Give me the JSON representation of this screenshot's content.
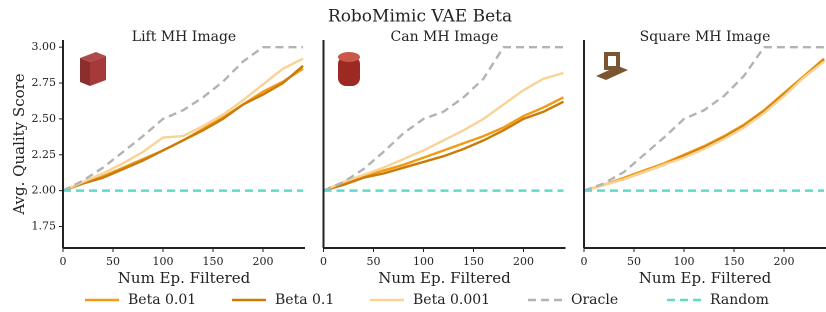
{
  "title": "RoboMimic VAE Beta",
  "chart_data": [
    {
      "type": "line",
      "title": "Lift MH Image",
      "xlabel": "Num Ep. Filtered",
      "ylabel": "Avg. Quality Score",
      "x": [
        0,
        20,
        40,
        60,
        80,
        100,
        120,
        140,
        160,
        180,
        200,
        220,
        240
      ],
      "xlim": [
        0,
        242
      ],
      "xticks": [
        0,
        50,
        100,
        150,
        200
      ],
      "ylim": [
        1.6,
        3.05
      ],
      "yticks": [
        {
          "value": 1.75,
          "label": "1.75"
        },
        {
          "value": 2,
          "label": "2.00"
        },
        {
          "value": 2.25,
          "label": "2.25"
        },
        {
          "value": 2.5,
          "label": "2.50"
        },
        {
          "value": 2.75,
          "label": "2.75"
        },
        {
          "value": 3,
          "label": "3.00"
        }
      ],
      "series": [
        {
          "name": "Beta 0.01",
          "color": "#f39a12",
          "linestyle": "solid",
          "values": [
            2.0,
            2.05,
            2.1,
            2.16,
            2.22,
            2.28,
            2.35,
            2.43,
            2.51,
            2.6,
            2.69,
            2.76,
            2.85
          ]
        },
        {
          "name": "Beta 0.1",
          "color": "#c97b0c",
          "linestyle": "solid",
          "values": [
            2.0,
            2.05,
            2.09,
            2.15,
            2.21,
            2.28,
            2.35,
            2.42,
            2.5,
            2.6,
            2.67,
            2.75,
            2.87
          ]
        },
        {
          "name": "Beta 0.001",
          "color": "#f8d394",
          "linestyle": "solid",
          "values": [
            2.0,
            2.06,
            2.12,
            2.19,
            2.27,
            2.37,
            2.38,
            2.45,
            2.53,
            2.63,
            2.74,
            2.85,
            2.92
          ]
        },
        {
          "name": "Oracle",
          "color": "#b3b3b3",
          "linestyle": "dashed",
          "values": [
            2.0,
            2.07,
            2.16,
            2.27,
            2.38,
            2.5,
            2.56,
            2.65,
            2.76,
            2.9,
            3.0,
            3.0,
            3.0
          ]
        },
        {
          "name": "Random",
          "color": "#5fd9c9",
          "linestyle": "dashed",
          "values": [
            2.0,
            2.0,
            2.0,
            2.0,
            2.0,
            2.0,
            2.0,
            2.0,
            2.0,
            2.0,
            2.0,
            2.0,
            2.0
          ]
        }
      ]
    },
    {
      "type": "line",
      "title": "Can MH Image",
      "xlabel": "Num Ep. Filtered",
      "x": [
        0,
        20,
        40,
        60,
        80,
        100,
        120,
        140,
        160,
        180,
        200,
        220,
        240
      ],
      "xlim": [
        0,
        242
      ],
      "xticks": [
        0,
        50,
        100,
        150,
        200
      ],
      "ylim": [
        1.6,
        3.05
      ],
      "series": [
        {
          "name": "Beta 0.01",
          "color": "#f39a12",
          "linestyle": "solid",
          "values": [
            2.0,
            2.05,
            2.1,
            2.14,
            2.18,
            2.23,
            2.28,
            2.33,
            2.38,
            2.44,
            2.52,
            2.58,
            2.65
          ]
        },
        {
          "name": "Beta 0.1",
          "color": "#c97b0c",
          "linestyle": "solid",
          "values": [
            2.0,
            2.04,
            2.09,
            2.12,
            2.16,
            2.2,
            2.24,
            2.29,
            2.35,
            2.42,
            2.5,
            2.55,
            2.62
          ]
        },
        {
          "name": "Beta 0.001",
          "color": "#f8d394",
          "linestyle": "solid",
          "values": [
            2.0,
            2.06,
            2.11,
            2.16,
            2.22,
            2.28,
            2.35,
            2.42,
            2.5,
            2.6,
            2.7,
            2.78,
            2.82
          ]
        },
        {
          "name": "Oracle",
          "color": "#b3b3b3",
          "linestyle": "dashed",
          "values": [
            2.0,
            2.06,
            2.15,
            2.27,
            2.4,
            2.5,
            2.55,
            2.65,
            2.78,
            3.0,
            3.0,
            3.0,
            3.0
          ]
        },
        {
          "name": "Random",
          "color": "#5fd9c9",
          "linestyle": "dashed",
          "values": [
            2.0,
            2.0,
            2.0,
            2.0,
            2.0,
            2.0,
            2.0,
            2.0,
            2.0,
            2.0,
            2.0,
            2.0,
            2.0
          ]
        }
      ]
    },
    {
      "type": "line",
      "title": "Square MH Image",
      "xlabel": "Num Ep. Filtered",
      "x": [
        0,
        20,
        40,
        60,
        80,
        100,
        120,
        140,
        160,
        180,
        200,
        220,
        240
      ],
      "xlim": [
        0,
        242
      ],
      "xticks": [
        0,
        50,
        100,
        150,
        200
      ],
      "ylim": [
        1.6,
        3.05
      ],
      "series": [
        {
          "name": "Beta 0.01",
          "color": "#f39a12",
          "linestyle": "solid",
          "values": [
            2.0,
            2.04,
            2.09,
            2.14,
            2.19,
            2.25,
            2.31,
            2.38,
            2.46,
            2.56,
            2.68,
            2.8,
            2.92
          ]
        },
        {
          "name": "Beta 0.1",
          "color": "#c97b0c",
          "linestyle": "solid",
          "values": [
            2.0,
            2.04,
            2.08,
            2.13,
            2.18,
            2.24,
            2.3,
            2.37,
            2.45,
            2.55,
            2.67,
            2.79,
            2.91
          ]
        },
        {
          "name": "Beta 0.001",
          "color": "#f8d394",
          "linestyle": "solid",
          "values": [
            2.0,
            2.04,
            2.08,
            2.13,
            2.18,
            2.23,
            2.29,
            2.36,
            2.44,
            2.54,
            2.66,
            2.79,
            2.9
          ]
        },
        {
          "name": "Oracle",
          "color": "#b3b3b3",
          "linestyle": "dashed",
          "values": [
            2.0,
            2.05,
            2.13,
            2.25,
            2.37,
            2.5,
            2.56,
            2.66,
            2.8,
            3.0,
            3.0,
            3.0,
            3.0
          ]
        },
        {
          "name": "Random",
          "color": "#5fd9c9",
          "linestyle": "dashed",
          "values": [
            2.0,
            2.0,
            2.0,
            2.0,
            2.0,
            2.0,
            2.0,
            2.0,
            2.0,
            2.0,
            2.0,
            2.0,
            2.0
          ]
        }
      ]
    }
  ]
}
